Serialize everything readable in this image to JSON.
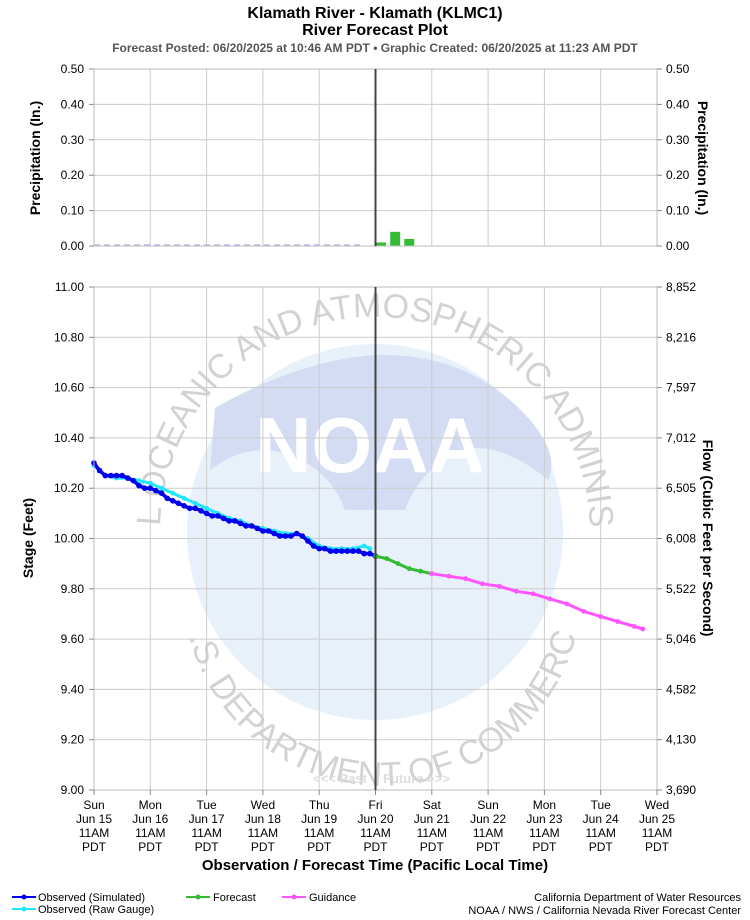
{
  "header": {
    "title_line1": "Klamath River - Klamath (KLMC1)",
    "title_line2": "River Forecast Plot",
    "subtitle": "Forecast Posted: 06/20/2025 at 10:46 AM PDT  •  Graphic Created: 06/20/2025 at 11:23 AM PDT"
  },
  "precip_panel": {
    "ylabel_left": "Precipitation (In.)",
    "ylabel_right": "Precipitation (In.)",
    "yticks": [
      "0.50",
      "0.40",
      "0.30",
      "0.20",
      "0.10",
      "0.00"
    ]
  },
  "stage_panel": {
    "ylabel_left": "Stage (Feet)",
    "ylabel_right": "Flow (Cubic Feet per Second)",
    "yticks_left": [
      "11.00",
      "10.80",
      "10.60",
      "10.40",
      "10.20",
      "10.00",
      "9.80",
      "9.60",
      "9.40",
      "9.20",
      "9.00"
    ],
    "yticks_right": [
      "8,852",
      "8,216",
      "7,597",
      "7,012",
      "6,505",
      "6,008",
      "5,522",
      "5,046",
      "4,582",
      "4,130",
      "3,690"
    ]
  },
  "x_axis": {
    "label": "Observation / Forecast Time (Pacific Local Time)",
    "ticks": [
      {
        "day": "Sun",
        "date": "Jun 15",
        "time": "11AM",
        "tz": "PDT"
      },
      {
        "day": "Mon",
        "date": "Jun 16",
        "time": "11AM",
        "tz": "PDT"
      },
      {
        "day": "Tue",
        "date": "Jun 17",
        "time": "11AM",
        "tz": "PDT"
      },
      {
        "day": "Wed",
        "date": "Jun 18",
        "time": "11AM",
        "tz": "PDT"
      },
      {
        "day": "Thu",
        "date": "Jun 19",
        "time": "11AM",
        "tz": "PDT"
      },
      {
        "day": "Fri",
        "date": "Jun 20",
        "time": "11AM",
        "tz": "PDT"
      },
      {
        "day": "Sat",
        "date": "Jun 21",
        "time": "11AM",
        "tz": "PDT"
      },
      {
        "day": "Sun",
        "date": "Jun 22",
        "time": "11AM",
        "tz": "PDT"
      },
      {
        "day": "Mon",
        "date": "Jun 23",
        "time": "11AM",
        "tz": "PDT"
      },
      {
        "day": "Tue",
        "date": "Jun 24",
        "time": "11AM",
        "tz": "PDT"
      },
      {
        "day": "Wed",
        "date": "Jun 25",
        "time": "11AM",
        "tz": "PDT"
      }
    ]
  },
  "past_future": {
    "past": "<<< Past",
    "future": "Future >>>"
  },
  "legend": {
    "observed_simulated": "Observed (Simulated)",
    "observed_raw": "Observed (Raw Gauge)",
    "forecast": "Forecast",
    "guidance": "Guidance"
  },
  "credits": {
    "line1": "California Department of Water Resources",
    "line2": "NOAA / NWS / California Nevada River Forecast Center"
  },
  "watermark": {
    "logo_text": "NOAA",
    "ring_top": "NATIONAL OCEANIC AND ATMOSPHERIC ADMINISTRATION",
    "ring_bottom": "U.S. DEPARTMENT OF COMMERCE"
  },
  "colors": {
    "observed_simulated": "#0000ee",
    "observed_raw": "#22e5ff",
    "forecast": "#33bb33",
    "guidance": "#ff55ff",
    "grid": "#cccccc",
    "now_line": "#444444",
    "precip_past": "#bbbbee"
  },
  "chart_data": {
    "type": "line",
    "title": "Klamath River - Klamath (KLMC1) River Forecast Plot",
    "xlabel": "Observation / Forecast Time (Pacific Local Time)",
    "x_unit": "days since Sun Jun 15 11AM PDT",
    "xlim": [
      0,
      10
    ],
    "now_x": 5,
    "precip_ylim": [
      0,
      0.5
    ],
    "stage_ylim": [
      9.0,
      11.0
    ],
    "precip_forecast": [
      {
        "x": 5.1,
        "value": 0.01
      },
      {
        "x": 5.35,
        "value": 0.04
      },
      {
        "x": 5.6,
        "value": 0.02
      }
    ],
    "series": [
      {
        "name": "Observed (Simulated)",
        "x": [
          0,
          0.1,
          0.2,
          0.3,
          0.4,
          0.5,
          0.6,
          0.7,
          0.8,
          0.9,
          1.0,
          1.1,
          1.2,
          1.3,
          1.4,
          1.5,
          1.6,
          1.7,
          1.8,
          1.9,
          2.0,
          2.1,
          2.2,
          2.3,
          2.4,
          2.5,
          2.6,
          2.7,
          2.8,
          2.9,
          3.0,
          3.1,
          3.2,
          3.3,
          3.4,
          3.5,
          3.6,
          3.7,
          3.8,
          3.9,
          4.0,
          4.1,
          4.2,
          4.3,
          4.4,
          4.5,
          4.6,
          4.7,
          4.8,
          4.9,
          5.0
        ],
        "values": [
          10.3,
          10.27,
          10.25,
          10.25,
          10.25,
          10.25,
          10.24,
          10.23,
          10.21,
          10.2,
          10.2,
          10.19,
          10.18,
          10.16,
          10.15,
          10.14,
          10.13,
          10.12,
          10.12,
          10.11,
          10.1,
          10.09,
          10.09,
          10.08,
          10.07,
          10.07,
          10.06,
          10.05,
          10.05,
          10.04,
          10.03,
          10.03,
          10.02,
          10.01,
          10.01,
          10.01,
          10.02,
          10.01,
          9.99,
          9.97,
          9.96,
          9.96,
          9.95,
          9.95,
          9.95,
          9.95,
          9.95,
          9.95,
          9.94,
          9.94,
          9.93
        ]
      },
      {
        "name": "Observed (Raw Gauge)",
        "x": [
          0,
          0.2,
          0.4,
          0.6,
          0.8,
          1.0,
          1.2,
          1.4,
          1.6,
          1.8,
          2.0,
          2.2,
          2.4,
          2.6,
          2.8,
          3.0,
          3.2,
          3.4,
          3.6,
          3.8,
          4.0,
          4.2,
          4.4,
          4.6,
          4.8,
          4.9
        ],
        "values": [
          10.29,
          10.25,
          10.24,
          10.24,
          10.23,
          10.22,
          10.2,
          10.18,
          10.16,
          10.14,
          10.12,
          10.1,
          10.08,
          10.07,
          10.05,
          10.04,
          10.03,
          10.02,
          10.02,
          10.0,
          9.97,
          9.96,
          9.96,
          9.96,
          9.97,
          9.96
        ]
      },
      {
        "name": "Forecast",
        "x": [
          5.0,
          5.2,
          5.4,
          5.6,
          5.8,
          6.0
        ],
        "values": [
          9.93,
          9.92,
          9.9,
          9.88,
          9.87,
          9.86
        ]
      },
      {
        "name": "Guidance",
        "x": [
          6.0,
          6.3,
          6.6,
          6.9,
          7.2,
          7.5,
          7.8,
          8.1,
          8.4,
          8.7,
          9.0,
          9.3,
          9.6,
          9.75
        ],
        "values": [
          9.86,
          9.85,
          9.84,
          9.82,
          9.81,
          9.79,
          9.78,
          9.76,
          9.74,
          9.71,
          9.69,
          9.67,
          9.65,
          9.64
        ]
      }
    ]
  }
}
